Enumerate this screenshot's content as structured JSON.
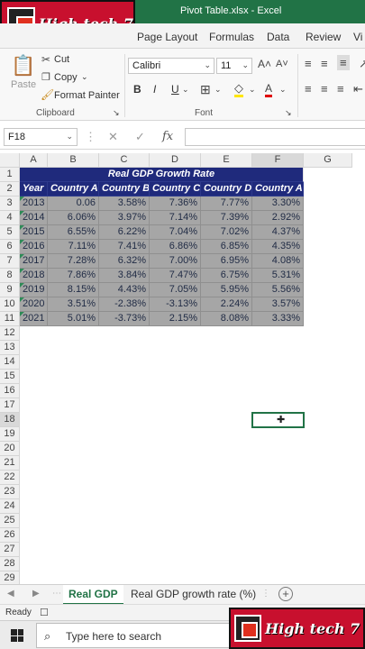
{
  "window": {
    "title": "Pivot Table.xlsx  -  Excel"
  },
  "logo": {
    "text": "High tech 7"
  },
  "ribbon_tabs": [
    "Page Layout",
    "Formulas",
    "Data",
    "Review",
    "Vi"
  ],
  "clipboard": {
    "paste": "Paste",
    "cut": "Cut",
    "copy": "Copy",
    "format_painter": "Format Painter",
    "group_label": "Clipboard"
  },
  "font": {
    "name": "Calibri",
    "size": "11",
    "bold": "B",
    "italic": "I",
    "underline": "U",
    "group_label": "Font"
  },
  "formula_bar": {
    "name_box": "F18",
    "fx": "fx",
    "value": ""
  },
  "columns": [
    "A",
    "B",
    "C",
    "D",
    "E",
    "F",
    "G"
  ],
  "rows": [
    "1",
    "2",
    "3",
    "4",
    "5",
    "6",
    "7",
    "8",
    "9",
    "10",
    "11",
    "12",
    "13",
    "14",
    "15",
    "16",
    "17",
    "18",
    "19",
    "20",
    "21",
    "22",
    "23",
    "24",
    "25",
    "26",
    "27",
    "28",
    "29"
  ],
  "table": {
    "title": "Real GDP Growth Rate",
    "headers": [
      "Year",
      "Country A",
      "Country B",
      "Country C",
      "Country D",
      "Country A"
    ],
    "rows": [
      [
        "2013",
        "0.06",
        "3.58%",
        "7.36%",
        "7.77%",
        "3.30%"
      ],
      [
        "2014",
        "6.06%",
        "3.97%",
        "7.14%",
        "7.39%",
        "2.92%"
      ],
      [
        "2015",
        "6.55%",
        "6.22%",
        "7.04%",
        "7.02%",
        "4.37%"
      ],
      [
        "2016",
        "7.11%",
        "7.41%",
        "6.86%",
        "6.85%",
        "4.35%"
      ],
      [
        "2017",
        "7.28%",
        "6.32%",
        "7.00%",
        "6.95%",
        "4.08%"
      ],
      [
        "2018",
        "7.86%",
        "3.84%",
        "7.47%",
        "6.75%",
        "5.31%"
      ],
      [
        "2019",
        "8.15%",
        "4.43%",
        "7.05%",
        "5.95%",
        "5.56%"
      ],
      [
        "2020",
        "3.51%",
        "-2.38%",
        "-3.13%",
        "2.24%",
        "3.57%"
      ],
      [
        "2021",
        "5.01%",
        "-3.73%",
        "2.15%",
        "8.08%",
        "3.33%"
      ]
    ]
  },
  "sheet_tabs": {
    "active": "Real GDP",
    "other": "Real GDP growth rate (%)"
  },
  "status": {
    "ready": "Ready"
  },
  "taskbar": {
    "search_placeholder": "Type here to search"
  },
  "colors": {
    "excel_green": "#217346",
    "header_navy": "#1f2a7c",
    "data_gray": "#a6a6a6",
    "logo_red": "#c8102e"
  }
}
